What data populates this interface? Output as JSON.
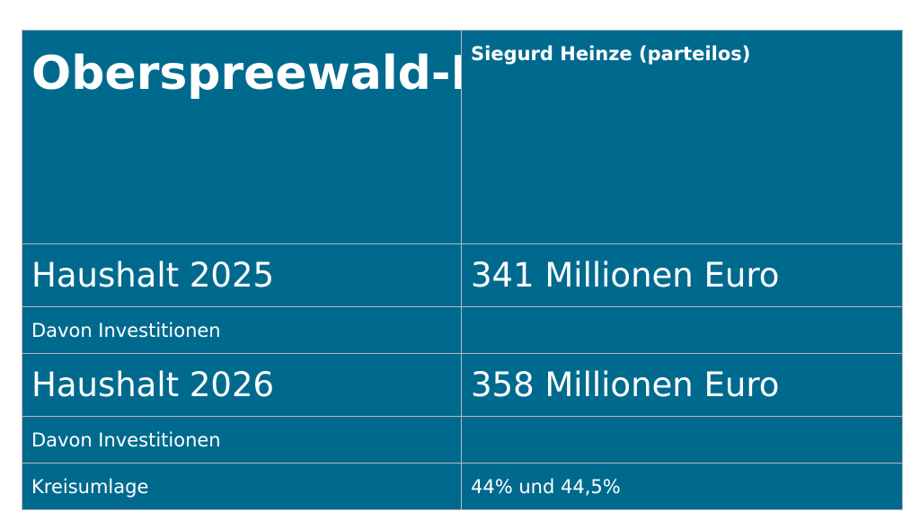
{
  "header": {
    "district": "Oberspreewald-Lausitz",
    "leader": "Siegurd Heinze (parteilos)"
  },
  "rows": [
    {
      "label": "Haushalt 2025",
      "value": "341 Millionen Euro"
    },
    {
      "label": "Davon Investitionen",
      "value": ""
    },
    {
      "label": "Haushalt 2026",
      "value": "358 Millionen Euro"
    },
    {
      "label": "Davon Investitionen",
      "value": ""
    },
    {
      "label": "Kreisumlage",
      "value": "44% und 44,5%"
    }
  ],
  "colors": {
    "cell_background": "#006a8e",
    "text": "#ffffff",
    "border": "#b9b9b9"
  }
}
